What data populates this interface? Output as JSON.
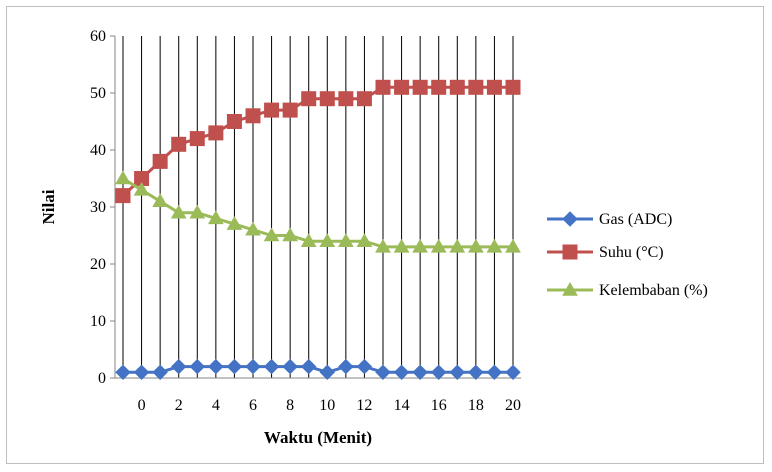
{
  "chart_data": {
    "type": "line",
    "xlabel": "Waktu (Menit)",
    "ylabel": "Nilai",
    "ylim": [
      0,
      60
    ],
    "yticks": [
      0,
      10,
      20,
      30,
      40,
      50,
      60
    ],
    "tick_labels": [
      "0",
      "2",
      "4",
      "6",
      "8",
      "10",
      "12",
      "14",
      "16",
      "18",
      "20"
    ],
    "x": [
      -1,
      0,
      1,
      2,
      3,
      4,
      5,
      6,
      7,
      8,
      9,
      10,
      11,
      12,
      13,
      14,
      15,
      16,
      17,
      18,
      19,
      20
    ],
    "grid": "vertical",
    "legend_position": "right",
    "series": [
      {
        "name": "Gas (ADC)",
        "color": "#4472c4",
        "marker": "diamond",
        "values": [
          1,
          1,
          1,
          2,
          2,
          2,
          2,
          2,
          2,
          2,
          2,
          1,
          2,
          2,
          1,
          1,
          1,
          1,
          1,
          1,
          1,
          1
        ]
      },
      {
        "name": "Suhu (°C)",
        "color": "#c0504d",
        "marker": "square",
        "values": [
          32,
          35,
          38,
          41,
          42,
          43,
          45,
          46,
          47,
          47,
          49,
          49,
          49,
          49,
          51,
          51,
          51,
          51,
          51,
          51,
          51,
          51
        ]
      },
      {
        "name": "Kelembaban (%)",
        "color": "#9bbb59",
        "marker": "triangle",
        "values": [
          35,
          33,
          31,
          29,
          29,
          28,
          27,
          26,
          25,
          25,
          24,
          24,
          24,
          24,
          23,
          23,
          23,
          23,
          23,
          23,
          23,
          23
        ]
      }
    ]
  }
}
